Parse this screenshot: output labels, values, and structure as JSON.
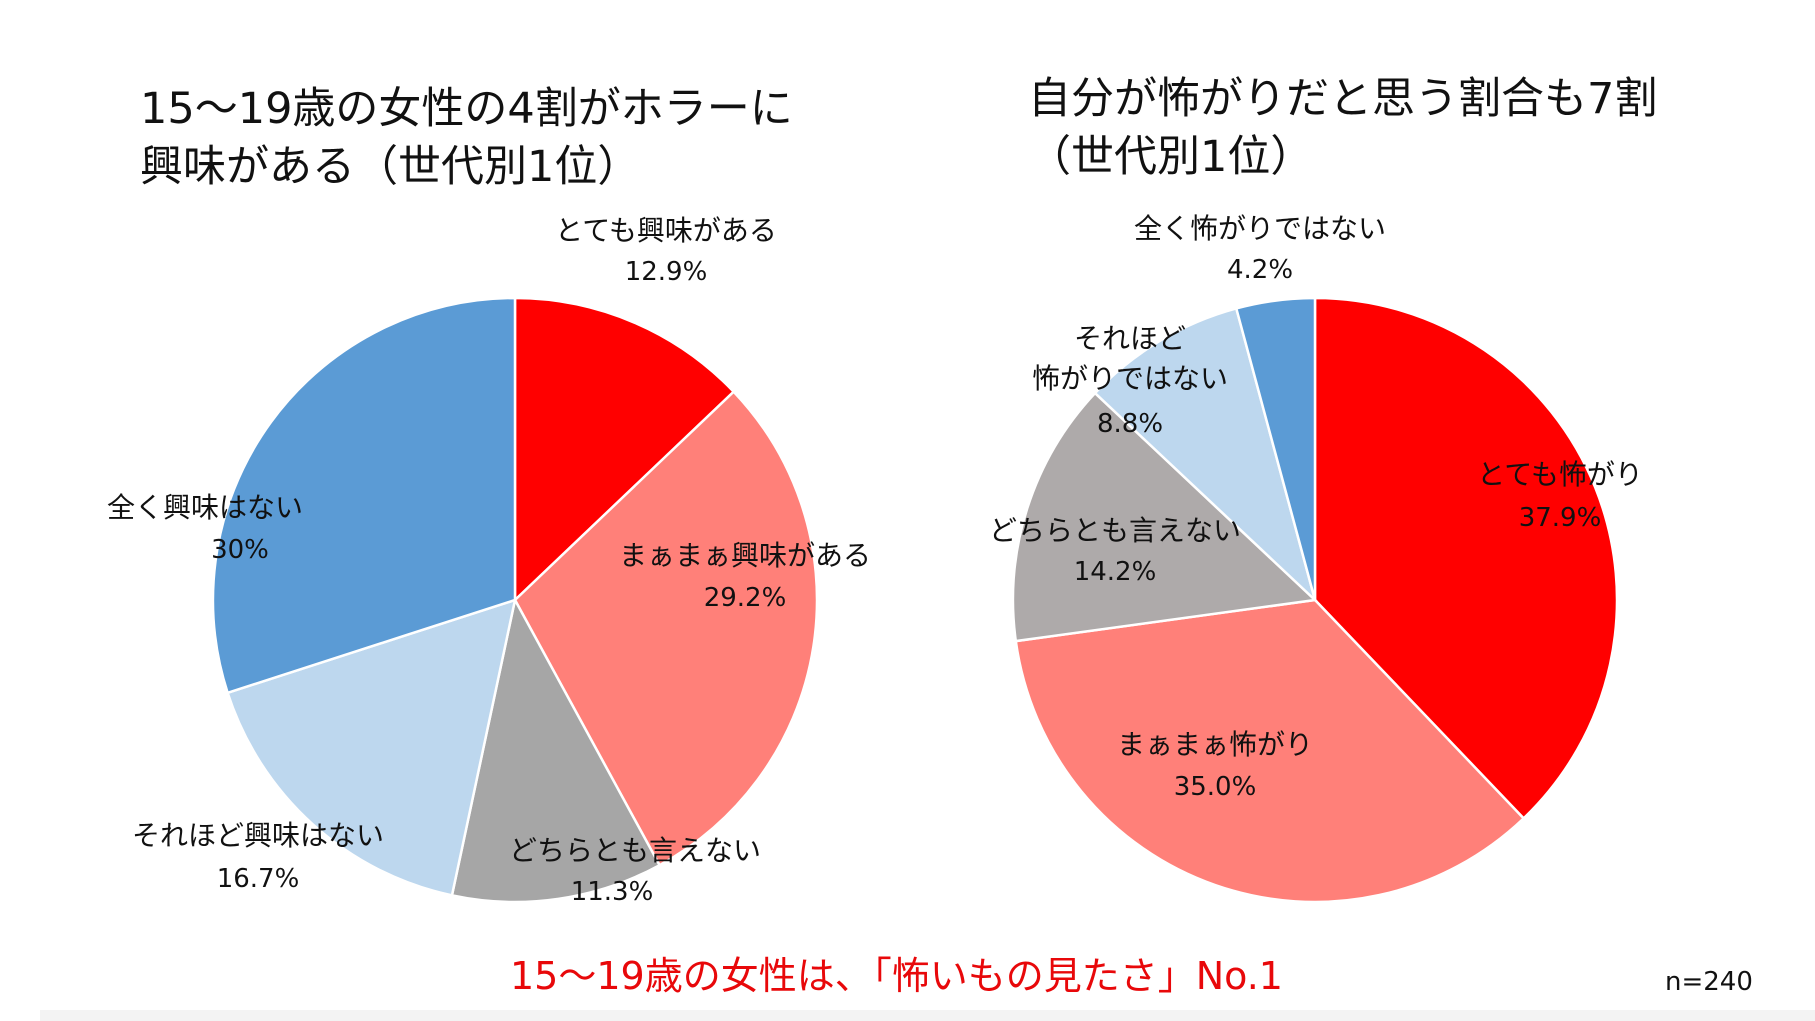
{
  "chart_data": [
    {
      "type": "pie",
      "title": [
        "15〜19歳の女性の4割がホラーに",
        "興味がある（世代別1位）"
      ],
      "categories": [
        "とても興味がある",
        "まぁまぁ興味がある",
        "どちらとも言えない",
        "それほど興味はない",
        "全く興味はない"
      ],
      "values": [
        12.9,
        29.2,
        11.3,
        16.7,
        30
      ],
      "value_labels": [
        "12.9%",
        "29.2%",
        "11.3%",
        "16.7%",
        "30%"
      ],
      "colors": [
        "#ff0000",
        "#ff8079",
        "#a6a6a6",
        "#bdd7ee",
        "#5b9bd5"
      ]
    },
    {
      "type": "pie",
      "title": [
        "自分が怖がりだと思う割合も7割",
        "（世代別1位）"
      ],
      "categories": [
        "とても怖がり",
        "まぁまぁ怖がり",
        "どちらとも言えない",
        "それほど\n怖がりではない",
        "全く怖がりではない"
      ],
      "values": [
        37.9,
        35.0,
        14.2,
        8.8,
        4.2
      ],
      "value_labels": [
        "37.9%",
        "35.0%",
        "14.2%",
        "8.8%",
        "4.2%"
      ],
      "colors": [
        "#ff0000",
        "#ff8079",
        "#aeaaaa",
        "#bdd7ee",
        "#5b9bd5"
      ]
    }
  ],
  "footnote": "15〜19歳の女性は、「怖いもの見たさ」No.1",
  "sample_size": "n=240"
}
